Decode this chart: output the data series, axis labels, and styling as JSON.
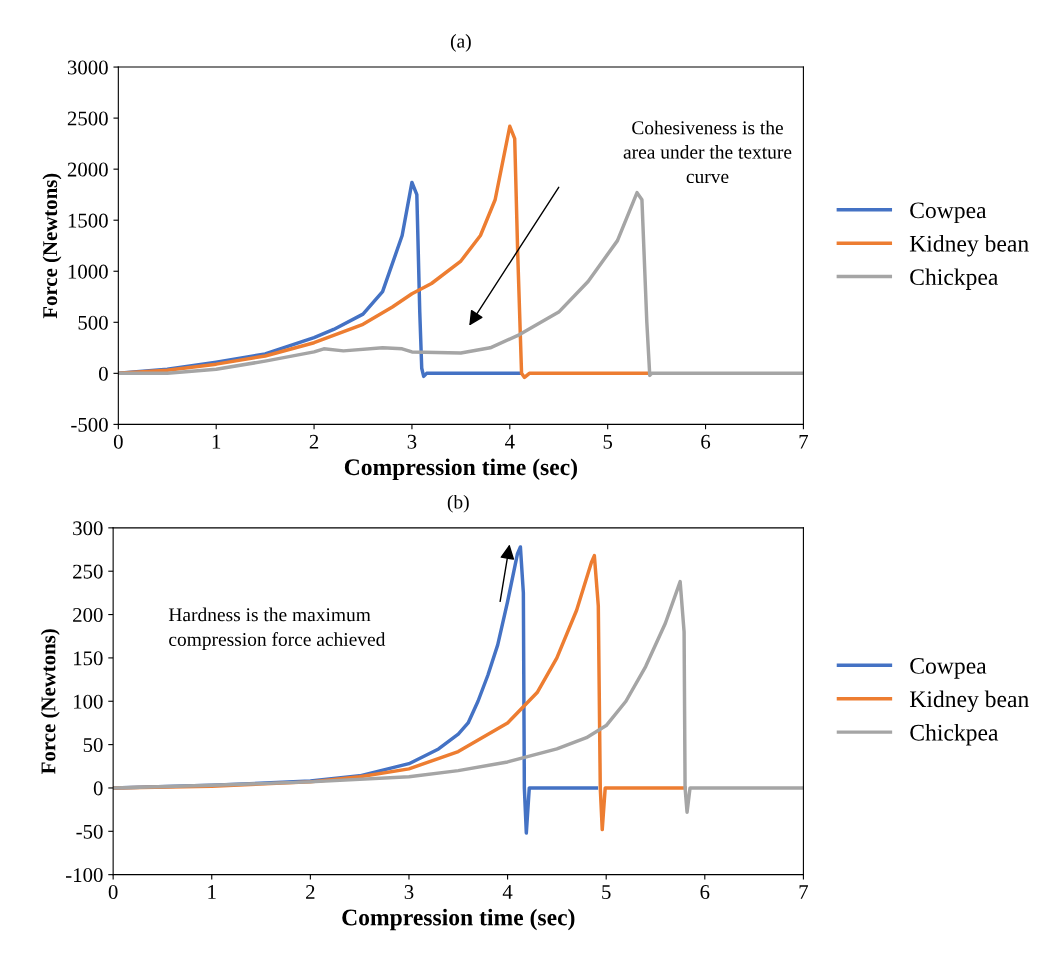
{
  "chart_data": [
    {
      "type": "line",
      "title": "(a)",
      "xlabel": "Compression time (sec)",
      "ylabel": "Force (Newtons)",
      "xlim": [
        0,
        7
      ],
      "ylim": [
        -500,
        3000
      ],
      "xticks": [
        0,
        1,
        2,
        3,
        4,
        5,
        6,
        7
      ],
      "yticks": [
        -500,
        0,
        500,
        1000,
        1500,
        2000,
        2500,
        3000
      ],
      "grid": false,
      "legend": "right",
      "marker": "none",
      "line_style": "solid",
      "annotations": [
        "Cohesiveness is the\narea under the texture\ncurve"
      ],
      "series": [
        {
          "name": "Cowpea",
          "color": "#4472c4",
          "x": [
            0,
            0.5,
            1,
            1.5,
            2,
            2.2,
            2.5,
            2.7,
            2.9,
            3.0,
            3.05,
            3.08,
            3.1,
            3.12,
            3.15,
            4.1
          ],
          "values": [
            0,
            40,
            110,
            190,
            350,
            430,
            580,
            800,
            1350,
            1870,
            1750,
            600,
            50,
            -30,
            0,
            0
          ]
        },
        {
          "name": "Kidney bean",
          "color": "#ed7d31",
          "x": [
            0,
            0.5,
            1,
            1.5,
            2,
            2.5,
            2.8,
            3.0,
            3.2,
            3.5,
            3.7,
            3.85,
            4.0,
            4.05,
            4.08,
            4.12,
            4.15,
            4.2,
            5.4
          ],
          "values": [
            0,
            30,
            90,
            170,
            300,
            480,
            650,
            780,
            880,
            1100,
            1350,
            1700,
            2420,
            2300,
            1200,
            0,
            -40,
            0,
            0
          ]
        },
        {
          "name": "Chickpea",
          "color": "#a5a5a5",
          "x": [
            0,
            0.5,
            1,
            1.5,
            2,
            2.1,
            2.3,
            2.7,
            2.9,
            3.0,
            3.5,
            3.8,
            4.1,
            4.5,
            4.8,
            5.1,
            5.3,
            5.35,
            5.4,
            5.43,
            5.45,
            7.0
          ],
          "values": [
            0,
            0,
            40,
            120,
            210,
            240,
            220,
            250,
            240,
            210,
            200,
            250,
            380,
            600,
            900,
            1300,
            1770,
            1700,
            500,
            -20,
            0,
            0
          ]
        }
      ]
    },
    {
      "type": "line",
      "title": "(b)",
      "xlabel": "Compression time (sec)",
      "ylabel": "Force (Newtons)",
      "xlim": [
        0,
        7
      ],
      "ylim": [
        -100,
        300
      ],
      "xticks": [
        0,
        1,
        2,
        3,
        4,
        5,
        6,
        7
      ],
      "yticks": [
        -100,
        -50,
        0,
        50,
        100,
        150,
        200,
        250,
        300
      ],
      "grid": false,
      "legend": "right",
      "marker": "none",
      "line_style": "solid",
      "annotations": [
        "Hardness is the maximum\ncompression force achieved"
      ],
      "series": [
        {
          "name": "Cowpea",
          "color": "#4472c4",
          "x": [
            0,
            1,
            2,
            2.5,
            3,
            3.3,
            3.5,
            3.6,
            3.7,
            3.8,
            3.9,
            4.0,
            4.1,
            4.13,
            4.16,
            4.17,
            4.19,
            4.22,
            4.9
          ],
          "values": [
            0,
            3,
            8,
            14,
            28,
            45,
            62,
            75,
            100,
            130,
            165,
            215,
            270,
            278,
            225,
            0,
            -52,
            0,
            0
          ]
        },
        {
          "name": "Kidney bean",
          "color": "#ed7d31",
          "x": [
            0,
            1,
            2,
            2.5,
            3,
            3.5,
            4,
            4.3,
            4.5,
            4.7,
            4.85,
            4.88,
            4.92,
            4.94,
            4.96,
            4.99,
            5.8
          ],
          "values": [
            0,
            2,
            7,
            13,
            22,
            42,
            75,
            110,
            150,
            205,
            260,
            268,
            210,
            0,
            -48,
            0,
            0
          ]
        },
        {
          "name": "Chickpea",
          "color": "#a5a5a5",
          "x": [
            0,
            1,
            2,
            3,
            3.5,
            4,
            4.5,
            4.8,
            5.0,
            5.2,
            5.4,
            5.6,
            5.75,
            5.79,
            5.8,
            5.82,
            5.85,
            7.0
          ],
          "values": [
            0,
            3,
            7,
            13,
            20,
            30,
            45,
            58,
            72,
            100,
            140,
            190,
            238,
            180,
            0,
            -28,
            0,
            0
          ]
        }
      ]
    }
  ]
}
